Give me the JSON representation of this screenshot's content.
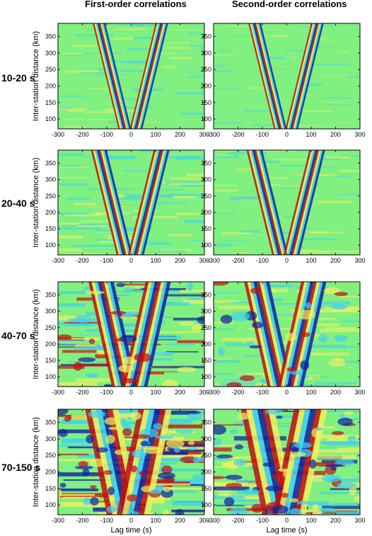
{
  "column_titles": [
    "First-order correlations",
    "Second-order correlations"
  ],
  "row_labels": [
    "10-20 s",
    "20-40 s",
    "40-70 s",
    "70-150 s"
  ],
  "colors": {
    "background": "#80f080",
    "red": "#c01010",
    "yellow": "#f0f060",
    "cyan": "#40d0f0",
    "blue": "#1020a0"
  },
  "chart_data": [
    {
      "type": "heatmap",
      "title": "First-order correlations",
      "row": "10-20 s",
      "xlabel": "",
      "ylabel": "Inter-station distance (km)",
      "xlim": [
        -300,
        300
      ],
      "ylim": [
        70,
        390
      ],
      "xticks": [
        -300,
        -200,
        -100,
        0,
        100,
        200,
        300
      ],
      "yticks": [
        100,
        150,
        200,
        250,
        300,
        350
      ],
      "moveout_apex_distance": 70,
      "moveout_slowness_s_per_km": 0.33,
      "background_noise": 0.25
    },
    {
      "type": "heatmap",
      "title": "Second-order correlations",
      "row": "10-20 s",
      "xlabel": "",
      "ylabel": "",
      "xlim": [
        -300,
        300
      ],
      "ylim": [
        70,
        390
      ],
      "xticks": [
        -300,
        -200,
        -100,
        0,
        100,
        200,
        300
      ],
      "yticks": [
        100,
        150,
        200,
        250,
        300,
        350
      ],
      "moveout_apex_distance": 70,
      "moveout_slowness_s_per_km": 0.33,
      "background_noise": 0.1
    },
    {
      "type": "heatmap",
      "title": "",
      "row": "20-40 s",
      "xlabel": "",
      "ylabel": "Inter-station distance (km)",
      "xlim": [
        -300,
        300
      ],
      "ylim": [
        70,
        390
      ],
      "xticks": [
        -300,
        -200,
        -100,
        0,
        100,
        200,
        300
      ],
      "yticks": [
        100,
        150,
        200,
        250,
        300,
        350
      ],
      "moveout_apex_distance": 70,
      "moveout_slowness_s_per_km": 0.33,
      "background_noise": 0.45
    },
    {
      "type": "heatmap",
      "title": "",
      "row": "20-40 s",
      "xlabel": "",
      "ylabel": "",
      "xlim": [
        -300,
        300
      ],
      "ylim": [
        70,
        390
      ],
      "xticks": [
        -300,
        -200,
        -100,
        0,
        100,
        200,
        300
      ],
      "yticks": [
        100,
        150,
        200,
        250,
        300,
        350
      ],
      "moveout_apex_distance": 70,
      "moveout_slowness_s_per_km": 0.33,
      "background_noise": 0.3
    },
    {
      "type": "heatmap",
      "title": "",
      "row": "40-70 s",
      "xlabel": "",
      "ylabel": "Inter-station distance (km)",
      "xlim": [
        -300,
        300
      ],
      "ylim": [
        70,
        390
      ],
      "xticks": [
        -300,
        -200,
        -100,
        0,
        100,
        200,
        300
      ],
      "yticks": [
        100,
        150,
        200,
        250,
        300,
        350
      ],
      "moveout_apex_distance": 70,
      "moveout_slowness_s_per_km": 0.3,
      "background_noise": 0.7
    },
    {
      "type": "heatmap",
      "title": "",
      "row": "40-70 s",
      "xlabel": "",
      "ylabel": "",
      "xlim": [
        -300,
        300
      ],
      "ylim": [
        70,
        390
      ],
      "xticks": [
        -300,
        -200,
        -100,
        0,
        100,
        200,
        300
      ],
      "yticks": [
        100,
        150,
        200,
        250,
        300,
        350
      ],
      "moveout_apex_distance": 70,
      "moveout_slowness_s_per_km": 0.3,
      "background_noise": 0.5
    },
    {
      "type": "heatmap",
      "title": "",
      "row": "70-150 s",
      "xlabel": "Lag time (s)",
      "ylabel": "Inter-station distance (km)",
      "xlim": [
        -300,
        300
      ],
      "ylim": [
        70,
        390
      ],
      "xticks": [
        -300,
        -200,
        -100,
        0,
        100,
        200,
        300
      ],
      "yticks": [
        100,
        150,
        200,
        250,
        300,
        350
      ],
      "moveout_apex_distance": 70,
      "moveout_slowness_s_per_km": 0.28,
      "background_noise": 0.9
    },
    {
      "type": "heatmap",
      "title": "",
      "row": "70-150 s",
      "xlabel": "Lag time (s)",
      "ylabel": "",
      "xlim": [
        -300,
        300
      ],
      "ylim": [
        70,
        390
      ],
      "xticks": [
        -300,
        -200,
        -100,
        0,
        100,
        200,
        300
      ],
      "yticks": [
        100,
        150,
        200,
        250,
        300,
        350
      ],
      "moveout_apex_distance": 70,
      "moveout_slowness_s_per_km": 0.28,
      "background_noise": 0.75
    }
  ]
}
